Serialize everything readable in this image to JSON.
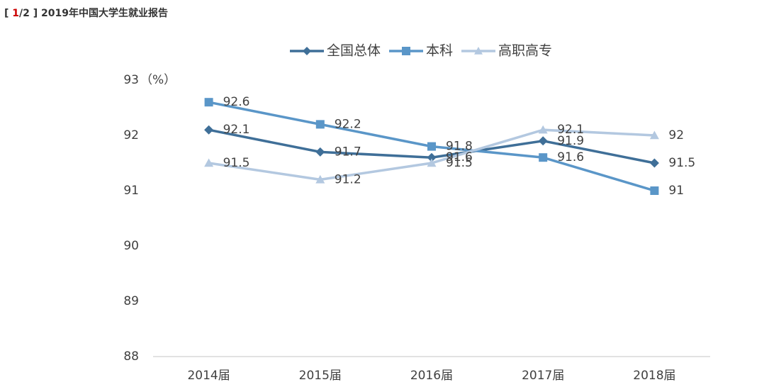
{
  "header": {
    "open": "[",
    "current": "1",
    "rest": "/2 ]",
    "title": "2019年中国大学生就业报告"
  },
  "chart_data": {
    "type": "line",
    "y_unit": "（%）",
    "categories": [
      "2014届",
      "2015届",
      "2016届",
      "2017届",
      "2018届"
    ],
    "series": [
      {
        "name": "全国总体",
        "color": "#3f6f98",
        "marker": "diamond",
        "values": [
          92.1,
          91.7,
          91.6,
          91.9,
          91.5
        ]
      },
      {
        "name": "本科",
        "color": "#5a96c8",
        "marker": "square",
        "values": [
          92.6,
          92.2,
          91.8,
          91.6,
          91.0
        ]
      },
      {
        "name": "高职高专",
        "color": "#b3c8e0",
        "marker": "triangle",
        "values": [
          91.5,
          91.2,
          91.5,
          92.1,
          92.0
        ]
      }
    ],
    "ylim": [
      88,
      93
    ],
    "yticks": [
      88,
      89,
      90,
      91,
      92,
      93
    ],
    "grid": false
  }
}
